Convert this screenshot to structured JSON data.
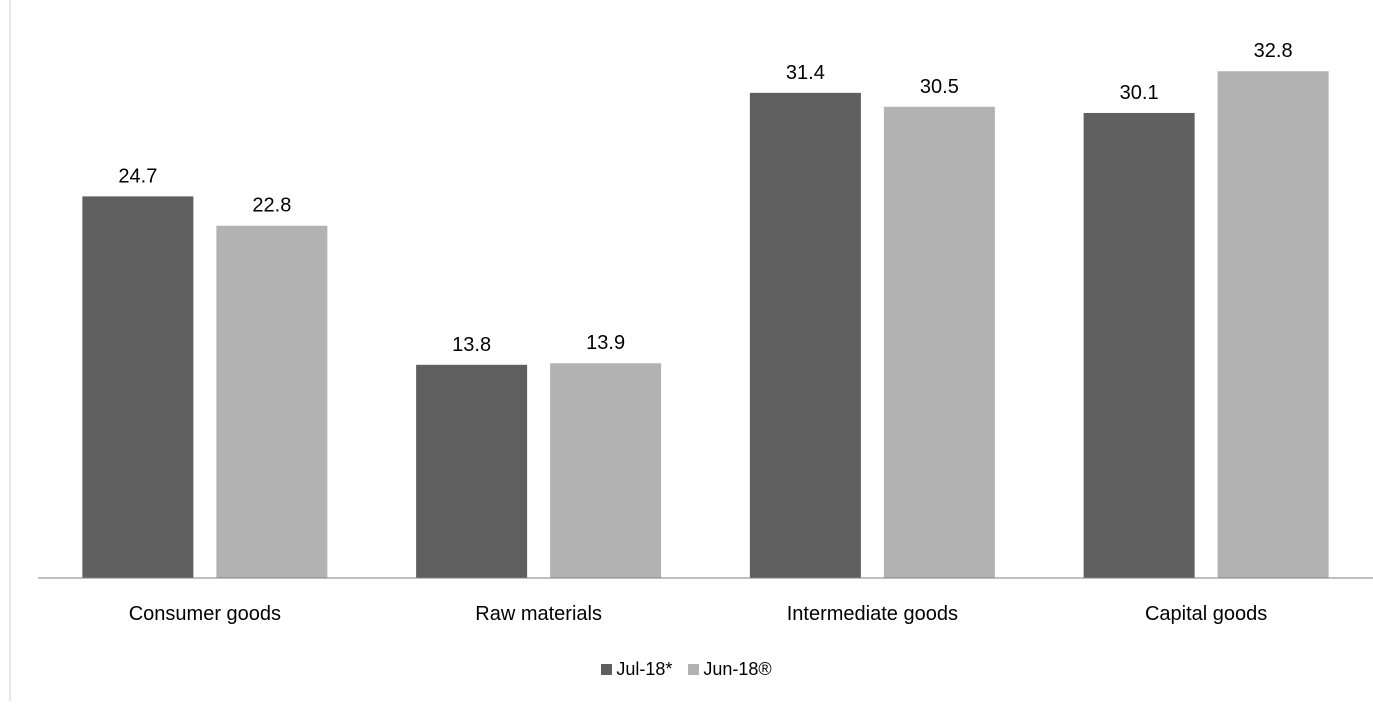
{
  "chart_data": {
    "type": "bar",
    "title": "",
    "xlabel": "",
    "ylabel": "",
    "categories": [
      "Consumer goods",
      "Raw materials",
      "Intermediate goods",
      "Capital goods"
    ],
    "series": [
      {
        "name": "Jul-18*",
        "values": [
          24.7,
          13.8,
          31.4,
          30.1
        ],
        "color": "#5f5f5f"
      },
      {
        "name": "Jun-18®",
        "values": [
          22.8,
          13.9,
          30.5,
          32.8
        ],
        "color": "#b2b2b2"
      }
    ],
    "ylim": [
      0,
      35
    ],
    "grid": false,
    "legend": "bottom",
    "data_labels": true
  }
}
